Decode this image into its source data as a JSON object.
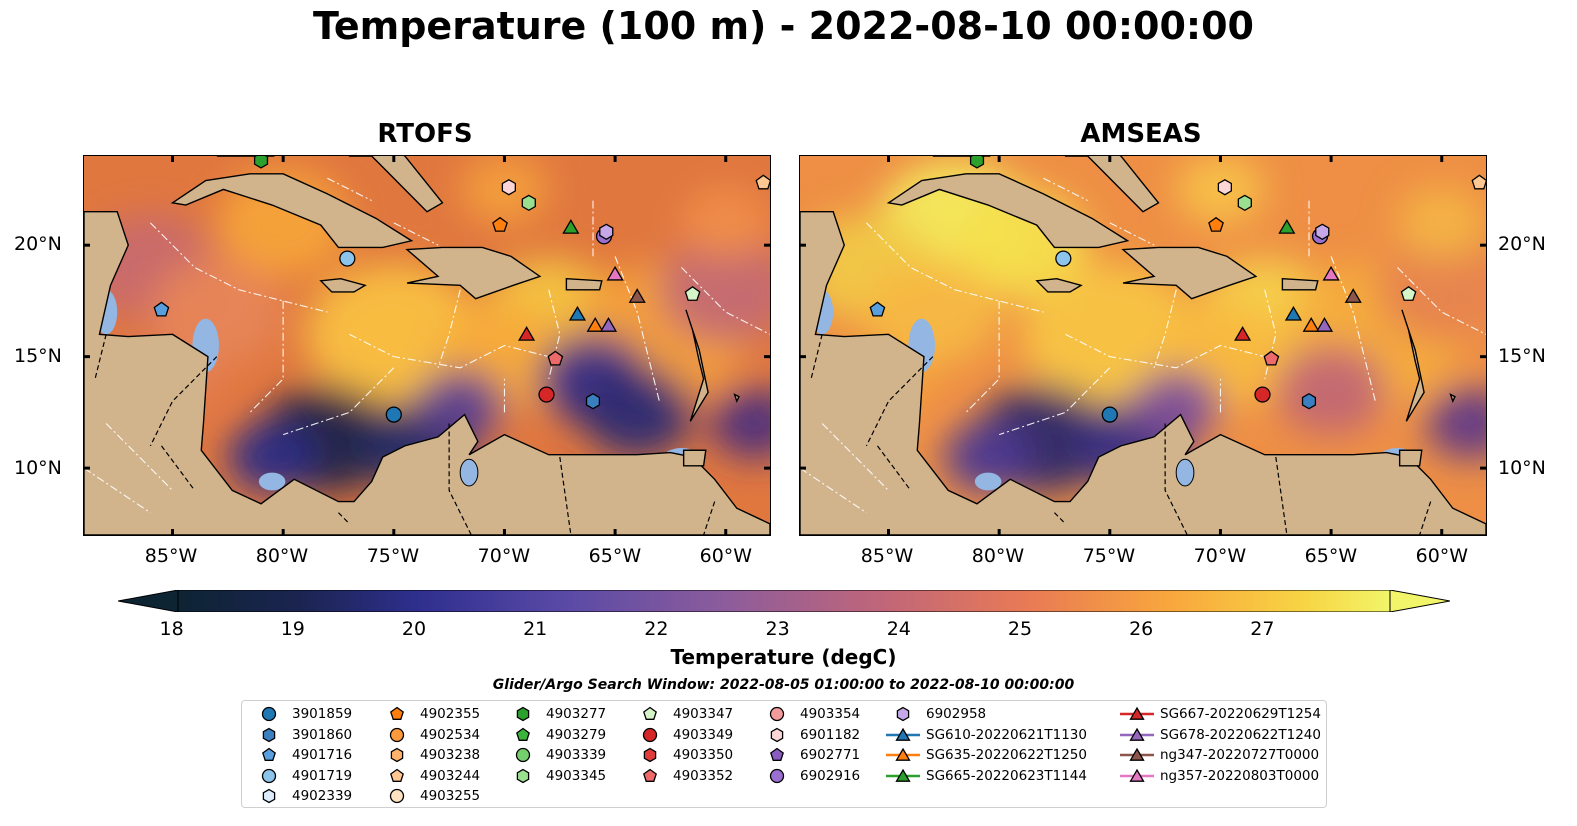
{
  "title": "Temperature (100 m) - 2022-08-10 00:00:00",
  "panels": [
    {
      "title": "RTOFS"
    },
    {
      "title": "AMSEAS"
    }
  ],
  "axes": {
    "lon_ticks": [
      "85°W",
      "80°W",
      "75°W",
      "70°W",
      "65°W",
      "60°W"
    ],
    "lat_ticks": [
      "20°N",
      "15°N",
      "10°N"
    ],
    "lon_range": [
      -89,
      -58
    ],
    "lat_range": [
      7,
      24
    ]
  },
  "colorbar": {
    "label": "Temperature (degC)",
    "ticks": [
      "18",
      "19",
      "20",
      "21",
      "22",
      "23",
      "24",
      "25",
      "26",
      "27"
    ],
    "min": 17.5,
    "max": 27.5,
    "colormap": "thermal"
  },
  "legend": {
    "title": "Glider/Argo Search Window: 2022-08-05 01:00:00 to 2022-08-10 00:00:00",
    "columns": [
      [
        {
          "label": "3901859",
          "marker": "circle",
          "color": "#1f77b4"
        },
        {
          "label": "3901860",
          "marker": "hexagon",
          "color": "#3a7fc0"
        },
        {
          "label": "4901716",
          "marker": "pentagon",
          "color": "#5a9fdd"
        },
        {
          "label": "4901719",
          "marker": "circle",
          "color": "#8cc4ec"
        },
        {
          "label": "4902339",
          "marker": "hexagon",
          "color": "#dcecfa"
        }
      ],
      [
        {
          "label": "4902355",
          "marker": "pentagon",
          "color": "#ff7f0e"
        },
        {
          "label": "4902534",
          "marker": "circle",
          "color": "#ff9a3c"
        },
        {
          "label": "4903238",
          "marker": "hexagon",
          "color": "#ffb26b"
        },
        {
          "label": "4903244",
          "marker": "pentagon",
          "color": "#ffc893"
        },
        {
          "label": "4903255",
          "marker": "circle",
          "color": "#ffe2c2"
        }
      ],
      [
        {
          "label": "4903277",
          "marker": "hexagon",
          "color": "#2ca02c"
        },
        {
          "label": "4903279",
          "marker": "pentagon",
          "color": "#3cb43c"
        },
        {
          "label": "4903339",
          "marker": "circle",
          "color": "#74cf6c"
        },
        {
          "label": "4903345",
          "marker": "hexagon",
          "color": "#9ae08f"
        }
      ],
      [
        {
          "label": "4903347",
          "marker": "pentagon",
          "color": "#d5f5c8"
        },
        {
          "label": "4903349",
          "marker": "circle",
          "color": "#d62728"
        },
        {
          "label": "4903350",
          "marker": "hexagon",
          "color": "#e03c3c"
        },
        {
          "label": "4903352",
          "marker": "pentagon",
          "color": "#ec6a6a"
        }
      ],
      [
        {
          "label": "4903354",
          "marker": "circle",
          "color": "#f49b9b"
        },
        {
          "label": "6901182",
          "marker": "hexagon",
          "color": "#fcd6d6"
        },
        {
          "label": "6902771",
          "marker": "pentagon",
          "color": "#8a5cc2"
        },
        {
          "label": "6902916",
          "marker": "circle",
          "color": "#9a6fd0"
        }
      ],
      [
        {
          "label": "6902958",
          "marker": "hexagon",
          "color": "#c6a8e8"
        },
        {
          "label": "SG610-20220621T1130",
          "marker": "triangle",
          "color": "#1f77b4",
          "line": true
        },
        {
          "label": "SG635-20220622T1250",
          "marker": "triangle",
          "color": "#ff7f0e",
          "line": true
        },
        {
          "label": "SG665-20220623T1144",
          "marker": "triangle",
          "color": "#2ca02c",
          "line": true
        }
      ],
      [
        {
          "label": "SG667-20220629T1254",
          "marker": "triangle",
          "color": "#d62728",
          "line": true
        },
        {
          "label": "SG678-20220622T1240",
          "marker": "triangle",
          "color": "#9467bd",
          "line": true
        },
        {
          "label": "ng347-20220727T0000",
          "marker": "triangle",
          "color": "#8c564b",
          "line": true
        },
        {
          "label": "ng357-20220803T0000",
          "marker": "triangle",
          "color": "#e377c2",
          "line": true
        }
      ]
    ]
  },
  "platforms": [
    {
      "label": "4901716",
      "lon": -85.5,
      "lat": 17.1
    },
    {
      "label": "4901719",
      "lon": -77.1,
      "lat": 19.4
    },
    {
      "label": "3901859",
      "lon": -75.0,
      "lat": 12.4
    },
    {
      "label": "4903349",
      "lon": -68.1,
      "lat": 13.3
    },
    {
      "label": "4903352",
      "lon": -67.7,
      "lat": 14.9
    },
    {
      "label": "6901182",
      "lon": -69.8,
      "lat": 22.6
    },
    {
      "label": "4903345",
      "lon": -68.9,
      "lat": 21.9
    },
    {
      "label": "4902355",
      "lon": -70.2,
      "lat": 20.9
    },
    {
      "label": "SG665-20220623T1144",
      "lon": -67.0,
      "lat": 20.8
    },
    {
      "label": "6902916",
      "lon": -65.5,
      "lat": 20.4
    },
    {
      "label": "6902958",
      "lon": -65.4,
      "lat": 20.6
    },
    {
      "label": "ng357-20220803T0000",
      "lon": -65.0,
      "lat": 18.7
    },
    {
      "label": "ng347-20220727T0000",
      "lon": -64.0,
      "lat": 17.7
    },
    {
      "label": "4903347",
      "lon": -61.5,
      "lat": 17.8
    },
    {
      "label": "SG610-20220621T1130",
      "lon": -66.7,
      "lat": 16.9
    },
    {
      "label": "SG635-20220622T1250",
      "lon": -65.9,
      "lat": 16.4
    },
    {
      "label": "SG678-20220622T1240",
      "lon": -65.3,
      "lat": 16.4
    },
    {
      "label": "SG667-20220629T1254",
      "lon": -69.0,
      "lat": 16.0
    },
    {
      "label": "3901860",
      "lon": -66.0,
      "lat": 13.0
    },
    {
      "label": "4903244",
      "lon": -58.3,
      "lat": 22.8
    },
    {
      "label": "4903277",
      "lon": -81.0,
      "lat": 23.8
    }
  ]
}
